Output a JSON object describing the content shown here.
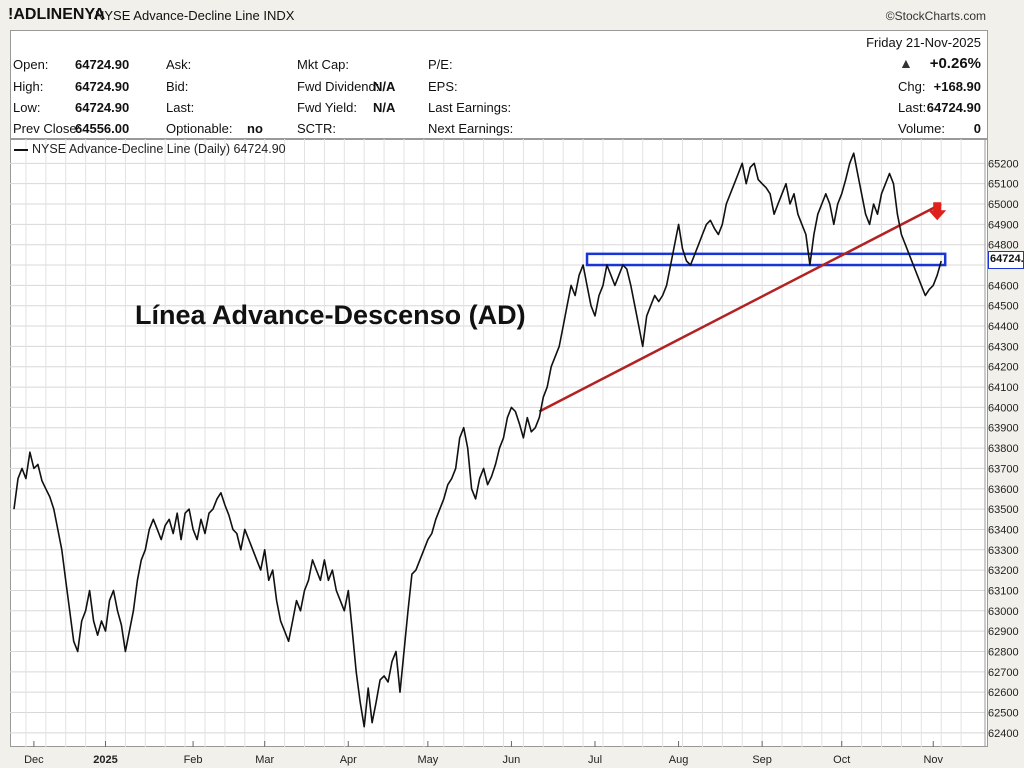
{
  "header": {
    "symbol": "!ADLINENYA",
    "description": "NYSE Advance-Decline Line  INDX",
    "brand": "©StockCharts.com"
  },
  "stats": {
    "date_line": "Friday   21-Nov-2025",
    "open_label": "Open:",
    "open": "64724.90",
    "high_label": "High:",
    "high": "64724.90",
    "low_label": "Low:",
    "low": "64724.90",
    "prev_close_label": "Prev Close:",
    "prev_close": "64556.00",
    "ask_label": "Ask:",
    "bid_label": "Bid:",
    "last_label": "Last:",
    "optionable_label": "Optionable:",
    "optionable": "no",
    "mktcap_label": "Mkt Cap:",
    "fwd_div_label": "Fwd Dividend:",
    "fwd_div": "N/A",
    "fwd_yield_label": "Fwd Yield:",
    "fwd_yield": "N/A",
    "sctr_label": "SCTR:",
    "pe_label": "P/E:",
    "eps_label": "EPS:",
    "last_earn_label": "Last Earnings:",
    "next_earn_label": "Next Earnings:",
    "pct_change": "+0.26%",
    "chg_label": "Chg:",
    "chg": "+168.90",
    "last_price_label": "Last:",
    "last_price": "64724.90",
    "volume_label": "Volume:",
    "volume": "0"
  },
  "colors": {
    "line": "#111111",
    "trendline": "#b22222",
    "band": "#1a35d6",
    "arrow": "#e0201b",
    "up_triangle": "#333333"
  },
  "chart_data": {
    "type": "line",
    "legend": "NYSE Advance-Decline Line (Daily) 64724.90",
    "annotation": "Línea Advance-Descenso (AD)",
    "price_flag": "64724.",
    "ylim": [
      62350,
      65300
    ],
    "y_ticks": [
      62400,
      62500,
      62600,
      62700,
      62800,
      62900,
      63000,
      63100,
      63200,
      63300,
      63400,
      63500,
      63600,
      63700,
      63800,
      63900,
      64000,
      64100,
      64200,
      64300,
      64400,
      64500,
      64600,
      64700,
      64800,
      64900,
      65000,
      65100,
      65200
    ],
    "x_range": [
      0,
      243
    ],
    "x_ticks": [
      {
        "label": "Dec",
        "x": 5
      },
      {
        "label": "2025",
        "x": 23
      },
      {
        "label": "Feb",
        "x": 45
      },
      {
        "label": "Mar",
        "x": 63
      },
      {
        "label": "Apr",
        "x": 84
      },
      {
        "label": "May",
        "x": 104
      },
      {
        "label": "Jun",
        "x": 125
      },
      {
        "label": "Jul",
        "x": 146
      },
      {
        "label": "Aug",
        "x": 167
      },
      {
        "label": "Sep",
        "x": 188
      },
      {
        "label": "Oct",
        "x": 208
      },
      {
        "label": "Nov",
        "x": 231
      }
    ],
    "series": [
      {
        "values": [
          [
            0,
            63500
          ],
          [
            1,
            63650
          ],
          [
            2,
            63700
          ],
          [
            3,
            63650
          ],
          [
            4,
            63780
          ],
          [
            5,
            63700
          ],
          [
            6,
            63720
          ],
          [
            7,
            63640
          ],
          [
            8,
            63600
          ],
          [
            9,
            63560
          ],
          [
            10,
            63500
          ],
          [
            11,
            63400
          ],
          [
            12,
            63300
          ],
          [
            13,
            63150
          ],
          [
            14,
            63000
          ],
          [
            15,
            62850
          ],
          [
            16,
            62800
          ],
          [
            17,
            62950
          ],
          [
            18,
            63000
          ],
          [
            19,
            63100
          ],
          [
            20,
            62950
          ],
          [
            21,
            62880
          ],
          [
            22,
            62950
          ],
          [
            23,
            62900
          ],
          [
            24,
            63050
          ],
          [
            25,
            63100
          ],
          [
            26,
            63000
          ],
          [
            27,
            62930
          ],
          [
            28,
            62800
          ],
          [
            29,
            62900
          ],
          [
            30,
            63000
          ],
          [
            31,
            63150
          ],
          [
            32,
            63250
          ],
          [
            33,
            63300
          ],
          [
            34,
            63400
          ],
          [
            35,
            63450
          ],
          [
            36,
            63400
          ],
          [
            37,
            63350
          ],
          [
            38,
            63420
          ],
          [
            39,
            63450
          ],
          [
            40,
            63380
          ],
          [
            41,
            63480
          ],
          [
            42,
            63350
          ],
          [
            43,
            63480
          ],
          [
            44,
            63500
          ],
          [
            45,
            63400
          ],
          [
            46,
            63350
          ],
          [
            47,
            63450
          ],
          [
            48,
            63380
          ],
          [
            49,
            63480
          ],
          [
            50,
            63500
          ],
          [
            51,
            63550
          ],
          [
            52,
            63580
          ],
          [
            53,
            63520
          ],
          [
            54,
            63470
          ],
          [
            55,
            63400
          ],
          [
            56,
            63380
          ],
          [
            57,
            63300
          ],
          [
            58,
            63400
          ],
          [
            59,
            63350
          ],
          [
            60,
            63300
          ],
          [
            61,
            63250
          ],
          [
            62,
            63200
          ],
          [
            63,
            63300
          ],
          [
            64,
            63150
          ],
          [
            65,
            63200
          ],
          [
            66,
            63050
          ],
          [
            67,
            62950
          ],
          [
            68,
            62900
          ],
          [
            69,
            62850
          ],
          [
            70,
            62950
          ],
          [
            71,
            63050
          ],
          [
            72,
            63000
          ],
          [
            73,
            63100
          ],
          [
            74,
            63150
          ],
          [
            75,
            63250
          ],
          [
            76,
            63200
          ],
          [
            77,
            63150
          ],
          [
            78,
            63250
          ],
          [
            79,
            63150
          ],
          [
            80,
            63200
          ],
          [
            81,
            63100
          ],
          [
            82,
            63050
          ],
          [
            83,
            63000
          ],
          [
            84,
            63100
          ],
          [
            85,
            62900
          ],
          [
            86,
            62700
          ],
          [
            87,
            62550
          ],
          [
            88,
            62430
          ],
          [
            89,
            62620
          ],
          [
            90,
            62450
          ],
          [
            91,
            62550
          ],
          [
            92,
            62660
          ],
          [
            93,
            62680
          ],
          [
            94,
            62650
          ],
          [
            95,
            62750
          ],
          [
            96,
            62800
          ],
          [
            97,
            62600
          ],
          [
            98,
            62800
          ],
          [
            99,
            63000
          ],
          [
            100,
            63180
          ],
          [
            101,
            63200
          ],
          [
            102,
            63250
          ],
          [
            103,
            63300
          ],
          [
            104,
            63350
          ],
          [
            105,
            63380
          ],
          [
            106,
            63450
          ],
          [
            107,
            63500
          ],
          [
            108,
            63550
          ],
          [
            109,
            63620
          ],
          [
            110,
            63650
          ],
          [
            111,
            63700
          ],
          [
            112,
            63850
          ],
          [
            113,
            63900
          ],
          [
            114,
            63800
          ],
          [
            115,
            63600
          ],
          [
            116,
            63550
          ],
          [
            117,
            63650
          ],
          [
            118,
            63700
          ],
          [
            119,
            63620
          ],
          [
            120,
            63660
          ],
          [
            121,
            63720
          ],
          [
            122,
            63800
          ],
          [
            123,
            63850
          ],
          [
            124,
            63950
          ],
          [
            125,
            64000
          ],
          [
            126,
            63980
          ],
          [
            127,
            63920
          ],
          [
            128,
            63850
          ],
          [
            129,
            63950
          ],
          [
            130,
            63880
          ],
          [
            131,
            63900
          ],
          [
            132,
            63950
          ],
          [
            133,
            64050
          ],
          [
            134,
            64100
          ],
          [
            135,
            64200
          ],
          [
            136,
            64250
          ],
          [
            137,
            64300
          ],
          [
            138,
            64400
          ],
          [
            139,
            64500
          ],
          [
            140,
            64600
          ],
          [
            141,
            64550
          ],
          [
            142,
            64650
          ],
          [
            143,
            64700
          ],
          [
            144,
            64600
          ],
          [
            145,
            64500
          ],
          [
            146,
            64450
          ],
          [
            147,
            64550
          ],
          [
            148,
            64600
          ],
          [
            149,
            64700
          ],
          [
            150,
            64650
          ],
          [
            151,
            64600
          ],
          [
            152,
            64650
          ],
          [
            153,
            64700
          ],
          [
            154,
            64680
          ],
          [
            155,
            64600
          ],
          [
            156,
            64500
          ],
          [
            157,
            64400
          ],
          [
            158,
            64300
          ],
          [
            159,
            64450
          ],
          [
            160,
            64500
          ],
          [
            161,
            64550
          ],
          [
            162,
            64520
          ],
          [
            163,
            64550
          ],
          [
            164,
            64600
          ],
          [
            165,
            64700
          ],
          [
            166,
            64800
          ],
          [
            167,
            64900
          ],
          [
            168,
            64780
          ],
          [
            169,
            64720
          ],
          [
            170,
            64700
          ],
          [
            171,
            64750
          ],
          [
            172,
            64800
          ],
          [
            173,
            64850
          ],
          [
            174,
            64900
          ],
          [
            175,
            64920
          ],
          [
            176,
            64880
          ],
          [
            177,
            64850
          ],
          [
            178,
            64900
          ],
          [
            179,
            65000
          ],
          [
            180,
            65050
          ],
          [
            181,
            65100
          ],
          [
            182,
            65150
          ],
          [
            183,
            65200
          ],
          [
            184,
            65100
          ],
          [
            185,
            65180
          ],
          [
            186,
            65200
          ],
          [
            187,
            65120
          ],
          [
            188,
            65100
          ],
          [
            189,
            65080
          ],
          [
            190,
            65050
          ],
          [
            191,
            64950
          ],
          [
            192,
            65000
          ],
          [
            193,
            65050
          ],
          [
            194,
            65100
          ],
          [
            195,
            65000
          ],
          [
            196,
            65050
          ],
          [
            197,
            64950
          ],
          [
            198,
            64900
          ],
          [
            199,
            64850
          ],
          [
            200,
            64700
          ],
          [
            201,
            64850
          ],
          [
            202,
            64950
          ],
          [
            203,
            65000
          ],
          [
            204,
            65050
          ],
          [
            205,
            65000
          ],
          [
            206,
            64900
          ],
          [
            207,
            65000
          ],
          [
            208,
            65050
          ],
          [
            209,
            65120
          ],
          [
            210,
            65200
          ],
          [
            211,
            65250
          ],
          [
            212,
            65150
          ],
          [
            213,
            65050
          ],
          [
            214,
            64950
          ],
          [
            215,
            64900
          ],
          [
            216,
            65000
          ],
          [
            217,
            64950
          ],
          [
            218,
            65050
          ],
          [
            219,
            65100
          ],
          [
            220,
            65150
          ],
          [
            221,
            65100
          ],
          [
            222,
            64950
          ],
          [
            223,
            64850
          ],
          [
            224,
            64800
          ],
          [
            225,
            64750
          ],
          [
            226,
            64700
          ],
          [
            227,
            64650
          ],
          [
            228,
            64600
          ],
          [
            229,
            64550
          ],
          [
            230,
            64580
          ],
          [
            231,
            64600
          ],
          [
            232,
            64650
          ],
          [
            233,
            64720
          ]
        ]
      }
    ],
    "trendline": {
      "from": [
        132,
        63980
      ],
      "to": [
        233,
        65000
      ]
    },
    "support_band": {
      "from_x": 144,
      "to_x": 234,
      "y_low": 64700,
      "y_high": 64755
    }
  }
}
